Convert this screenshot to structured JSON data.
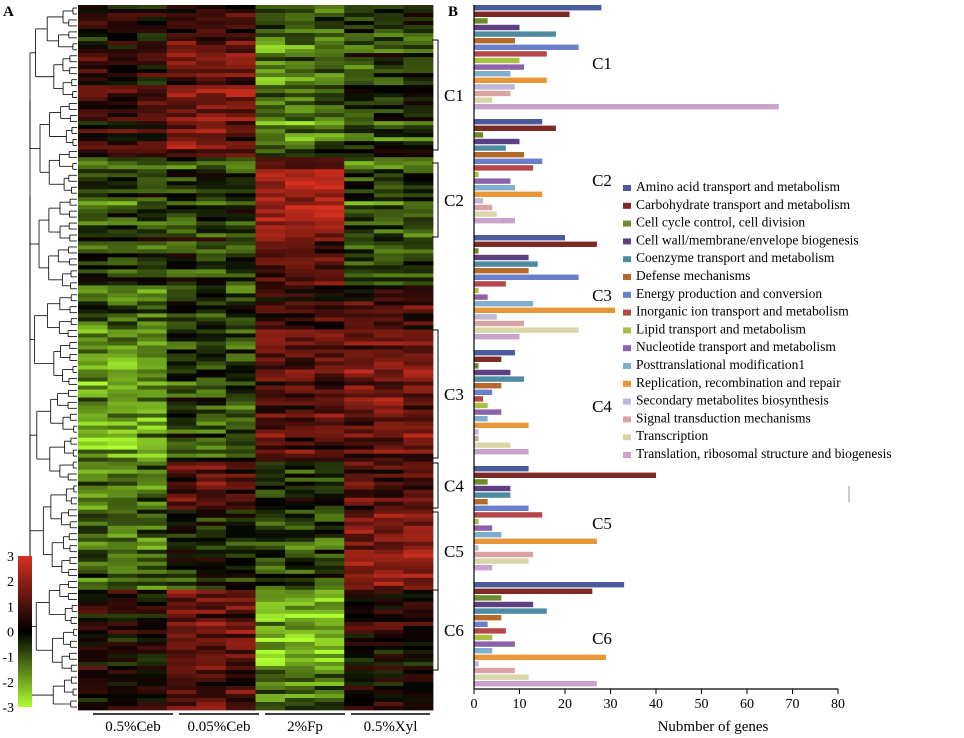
{
  "panelA": {
    "label": "A",
    "conditions": [
      "0.5%Ceb",
      "0.05%Ceb",
      "2%Fp",
      "0.5%Xyl"
    ],
    "clusters": [
      "C1",
      "C2",
      "C3",
      "C4",
      "C5",
      "C6"
    ],
    "colorbar": {
      "min": -3,
      "max": 3,
      "ticks": [
        "3",
        "2",
        "1",
        "0",
        "-1",
        "-2",
        "-3"
      ],
      "colors": {
        "high": "#d7301f",
        "mid": "#000000",
        "low": "#adff2f"
      }
    }
  },
  "panelB": {
    "label": "B",
    "xlabel": "Nubmber of genes",
    "categories_colors": [
      "#4a5a9c",
      "#7d2a24",
      "#6f8a2a",
      "#5e3f82",
      "#4e8aa0",
      "#b56a2a",
      "#6a7fc9",
      "#b5474a",
      "#a9bf45",
      "#8c62ab",
      "#7faecf",
      "#e8963a",
      "#c2b6d8",
      "#d9a3a3",
      "#d9d6a8",
      "#c9a3c9"
    ]
  },
  "chart_data": [
    {
      "type": "heatmap",
      "title": "",
      "columns": [
        "0.5%Ceb",
        "0.05%Ceb",
        "2%Fp",
        "0.5%Xyl"
      ],
      "replicates_per_column": 3,
      "clusters": [
        "C1",
        "C2",
        "C3",
        "C4",
        "C5",
        "C6"
      ],
      "color_scale": {
        "min": -3,
        "max": 3,
        "ticks": [
          3,
          2,
          1,
          0,
          -1,
          -2,
          -3
        ]
      },
      "cluster_mean_expression": {
        "C1": [
          0.5,
          1.5,
          -1.5,
          -0.8
        ],
        "C2": [
          -1.0,
          -0.8,
          2.0,
          -1.0
        ],
        "C3": [
          -1.8,
          -0.8,
          1.2,
          1.5
        ],
        "C4": [
          -1.5,
          1.0,
          -0.5,
          1.0
        ],
        "C5": [
          -1.2,
          -0.3,
          -0.8,
          1.8
        ],
        "C6": [
          0.3,
          1.5,
          -2.0,
          0.3
        ]
      }
    },
    {
      "type": "bar",
      "orientation": "horizontal",
      "xlabel": "Nubmber of genes",
      "ylabel": "",
      "xlim": [
        0,
        80
      ],
      "xticks": [
        0,
        10,
        20,
        30,
        40,
        50,
        60,
        70,
        80
      ],
      "legend": "top-right",
      "clusters": [
        "C1",
        "C2",
        "C3",
        "C4",
        "C5",
        "C6"
      ],
      "series": [
        {
          "name": "Amino acid transport and metabolism",
          "values": [
            28,
            15,
            20,
            9,
            12,
            33
          ]
        },
        {
          "name": "Carbohydrate transport and metabolism",
          "values": [
            21,
            18,
            27,
            6,
            40,
            26
          ]
        },
        {
          "name": "Cell cycle control, cell division",
          "values": [
            3,
            2,
            1,
            1,
            3,
            6
          ]
        },
        {
          "name": "Cell wall/membrane/envelope biogenesis",
          "values": [
            10,
            10,
            12,
            8,
            8,
            13
          ]
        },
        {
          "name": "Coenzyme transport and metabolism",
          "values": [
            18,
            7,
            14,
            11,
            8,
            16
          ]
        },
        {
          "name": "Defense mechanisms",
          "values": [
            9,
            11,
            12,
            6,
            3,
            6
          ]
        },
        {
          "name": "Energy production and conversion",
          "values": [
            23,
            15,
            23,
            4,
            12,
            3
          ]
        },
        {
          "name": "Inorganic ion transport and metabolism",
          "values": [
            16,
            13,
            7,
            2,
            15,
            7
          ]
        },
        {
          "name": "Lipid transport and metabolism",
          "values": [
            10,
            1,
            1,
            3,
            1,
            4
          ]
        },
        {
          "name": "Nucleotide transport and metabolism",
          "values": [
            11,
            8,
            3,
            6,
            4,
            9
          ]
        },
        {
          "name": "Posttranslational modification1",
          "values": [
            8,
            9,
            13,
            3,
            6,
            4
          ]
        },
        {
          "name": "Replication, recombination and repair",
          "values": [
            16,
            15,
            31,
            12,
            27,
            29
          ]
        },
        {
          "name": "Secondary metabolites biosynthesis",
          "values": [
            9,
            2,
            5,
            1,
            1,
            1
          ]
        },
        {
          "name": "Signal transduction mechanisms",
          "values": [
            8,
            4,
            11,
            1,
            13,
            9
          ]
        },
        {
          "name": "Transcription",
          "values": [
            4,
            5,
            23,
            8,
            12,
            12
          ]
        },
        {
          "name": "Translation, ribosomal structure and biogenesis",
          "values": [
            67,
            9,
            10,
            12,
            4,
            27
          ]
        }
      ]
    }
  ]
}
